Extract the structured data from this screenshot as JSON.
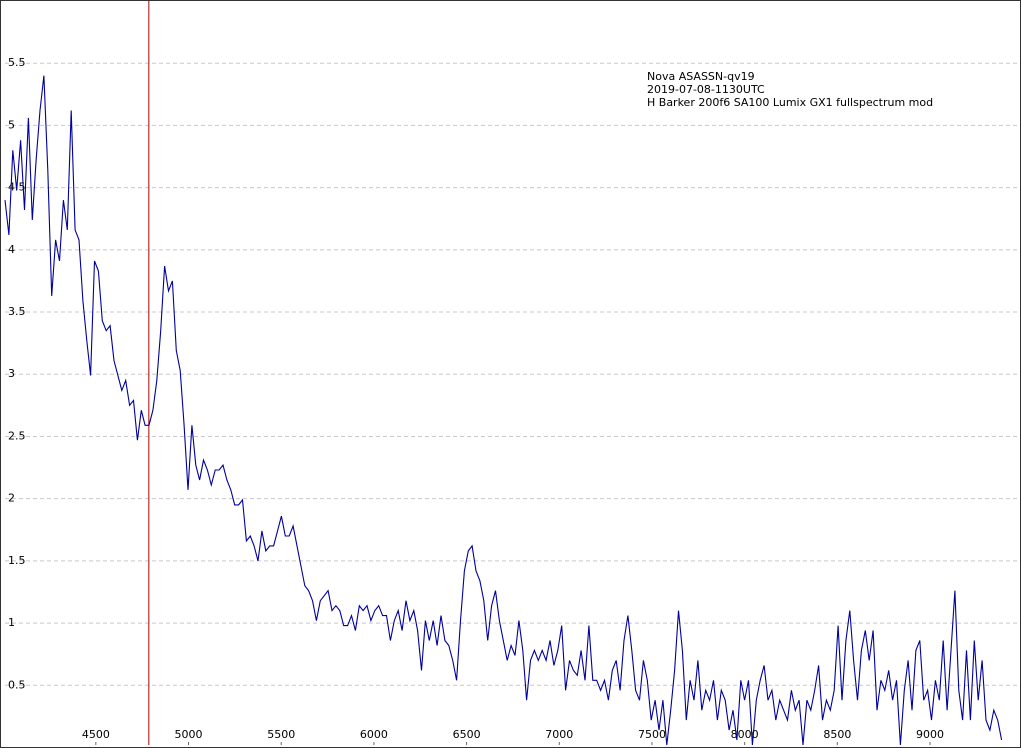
{
  "chart_data": {
    "type": "line",
    "annotations": [
      "Nova ASASSN-qv19",
      "2019-07-08-1130UTC",
      "H Barker 200f6 SA100 Lumix GX1 fullspectrum mod"
    ],
    "x": [
      4010,
      4031,
      4052,
      4073,
      4094,
      4115,
      4136,
      4157,
      4178,
      4199,
      4220,
      4241,
      4262,
      4283,
      4304,
      4325,
      4346,
      4367,
      4388,
      4409,
      4430,
      4451,
      4472,
      4493,
      4514,
      4535,
      4556,
      4577,
      4598,
      4619,
      4640,
      4661,
      4682,
      4703,
      4724,
      4745,
      4766,
      4787,
      4808,
      4829,
      4850,
      4871,
      4892,
      4913,
      4934,
      4955,
      4976,
      4997,
      5018,
      5039,
      5060,
      5081,
      5102,
      5123,
      5144,
      5165,
      5186,
      5207,
      5228,
      5249,
      5270,
      5291,
      5312,
      5333,
      5354,
      5375,
      5396,
      5417,
      5438,
      5459,
      5480,
      5501,
      5522,
      5543,
      5564,
      5585,
      5606,
      5627,
      5648,
      5669,
      5690,
      5711,
      5732,
      5753,
      5774,
      5795,
      5816,
      5837,
      5858,
      5879,
      5900,
      5921,
      5942,
      5963,
      5984,
      6005,
      6026,
      6047,
      6068,
      6089,
      6110,
      6131,
      6152,
      6173,
      6194,
      6215,
      6236,
      6257,
      6278,
      6299,
      6320,
      6341,
      6362,
      6383,
      6404,
      6425,
      6446,
      6467,
      6488,
      6509,
      6530,
      6551,
      6572,
      6593,
      6614,
      6635,
      6656,
      6677,
      6698,
      6719,
      6740,
      6761,
      6782,
      6803,
      6824,
      6845,
      6866,
      6887,
      6908,
      6929,
      6950,
      6971,
      6992,
      7013,
      7034,
      7055,
      7076,
      7097,
      7118,
      7139,
      7160,
      7181,
      7202,
      7223,
      7244,
      7265,
      7286,
      7307,
      7328,
      7349,
      7370,
      7391,
      7412,
      7433,
      7454,
      7475,
      7496,
      7517,
      7538,
      7559,
      7580,
      7601,
      7622,
      7643,
      7664,
      7685,
      7706,
      7727,
      7748,
      7769,
      7790,
      7811,
      7832,
      7853,
      7874,
      7895,
      7916,
      7937,
      7958,
      7979,
      8000,
      8021,
      8042,
      8063,
      8084,
      8105,
      8126,
      8147,
      8168,
      8189,
      8210,
      8231,
      8252,
      8273,
      8294,
      8315,
      8336,
      8357,
      8378,
      8399,
      8420,
      8441,
      8462,
      8483,
      8504,
      8525,
      8546,
      8567,
      8588,
      8609,
      8630,
      8651,
      8672,
      8693,
      8714,
      8735,
      8756,
      8777,
      8798,
      8819,
      8840,
      8861,
      8882,
      8903,
      8924,
      8945,
      8966,
      8987,
      9008,
      9029,
      9050,
      9071,
      9092,
      9113,
      9134,
      9155,
      9176,
      9197,
      9218,
      9239,
      9260,
      9281,
      9302,
      9323,
      9344,
      9365,
      9386
    ],
    "values": [
      4.4,
      4.12,
      4.8,
      4.48,
      4.88,
      4.32,
      5.06,
      4.24,
      4.72,
      5.12,
      5.4,
      4.64,
      3.63,
      4.08,
      3.91,
      4.4,
      4.16,
      5.12,
      4.16,
      4.08,
      3.59,
      3.27,
      2.99,
      3.91,
      3.83,
      3.43,
      3.35,
      3.39,
      3.11,
      2.99,
      2.87,
      2.95,
      2.75,
      2.79,
      2.47,
      2.71,
      2.59,
      2.59,
      2.71,
      2.95,
      3.35,
      3.87,
      3.67,
      3.75,
      3.19,
      3.03,
      2.59,
      2.07,
      2.59,
      2.27,
      2.15,
      2.31,
      2.23,
      2.11,
      2.23,
      2.23,
      2.27,
      2.15,
      2.07,
      1.95,
      1.95,
      1.99,
      1.66,
      1.7,
      1.62,
      1.5,
      1.74,
      1.58,
      1.62,
      1.62,
      1.74,
      1.86,
      1.7,
      1.7,
      1.78,
      1.62,
      1.46,
      1.3,
      1.26,
      1.18,
      1.02,
      1.18,
      1.22,
      1.26,
      1.1,
      1.14,
      1.1,
      0.98,
      0.98,
      1.06,
      0.94,
      1.14,
      1.1,
      1.14,
      1.02,
      1.1,
      1.14,
      1.06,
      1.06,
      0.86,
      1.02,
      1.1,
      0.94,
      1.18,
      1.02,
      1.1,
      0.94,
      0.62,
      1.02,
      0.86,
      1.02,
      0.82,
      1.06,
      0.86,
      0.82,
      0.7,
      0.54,
      1.02,
      1.42,
      1.58,
      1.62,
      1.42,
      1.34,
      1.18,
      0.86,
      1.14,
      1.26,
      1.02,
      0.86,
      0.7,
      0.82,
      0.74,
      1.02,
      0.78,
      0.38,
      0.7,
      0.78,
      0.7,
      0.78,
      0.7,
      0.86,
      0.66,
      0.78,
      0.98,
      0.46,
      0.7,
      0.62,
      0.58,
      0.78,
      0.54,
      0.98,
      0.54,
      0.54,
      0.46,
      0.54,
      0.38,
      0.62,
      0.7,
      0.46,
      0.86,
      1.06,
      0.78,
      0.46,
      0.38,
      0.7,
      0.54,
      0.22,
      0.38,
      0.14,
      0.38,
      0.02,
      0.3,
      0.62,
      1.1,
      0.78,
      0.22,
      0.54,
      0.38,
      0.7,
      0.3,
      0.46,
      0.38,
      0.54,
      0.22,
      0.46,
      0.38,
      0.14,
      0.3,
      0.06,
      0.54,
      0.38,
      0.54,
      0.02,
      0.38,
      0.54,
      0.66,
      0.38,
      0.46,
      0.22,
      0.38,
      0.3,
      0.22,
      0.46,
      0.3,
      0.38,
      0.02,
      0.38,
      0.3,
      0.46,
      0.66,
      0.22,
      0.38,
      0.3,
      0.46,
      0.98,
      0.38,
      0.86,
      1.1,
      0.7,
      0.38,
      0.78,
      0.94,
      0.7,
      0.94,
      0.3,
      0.54,
      0.46,
      0.62,
      0.38,
      0.54,
      0.02,
      0.46,
      0.7,
      0.3,
      0.78,
      0.86,
      0.38,
      0.46,
      0.22,
      0.54,
      0.38,
      0.86,
      0.3,
      0.78,
      1.26,
      0.46,
      0.22,
      0.78,
      0.22,
      0.86,
      0.38,
      0.7,
      0.22,
      0.14,
      0.3,
      0.22,
      0.06
    ],
    "color": "#00009c",
    "vlines": [
      {
        "x": 4786,
        "color": "#b00000"
      }
    ],
    "xlim": [
      4010,
      9480
    ],
    "xticks": [
      4500,
      5000,
      5500,
      6000,
      6500,
      7000,
      7500,
      8000,
      8500,
      9000
    ],
    "ylim": [
      0.02,
      6.0
    ],
    "yticks": [
      0.5,
      1,
      1.5,
      2,
      2.5,
      3,
      3.5,
      4,
      4.5,
      5,
      5.5
    ],
    "grid": true
  }
}
